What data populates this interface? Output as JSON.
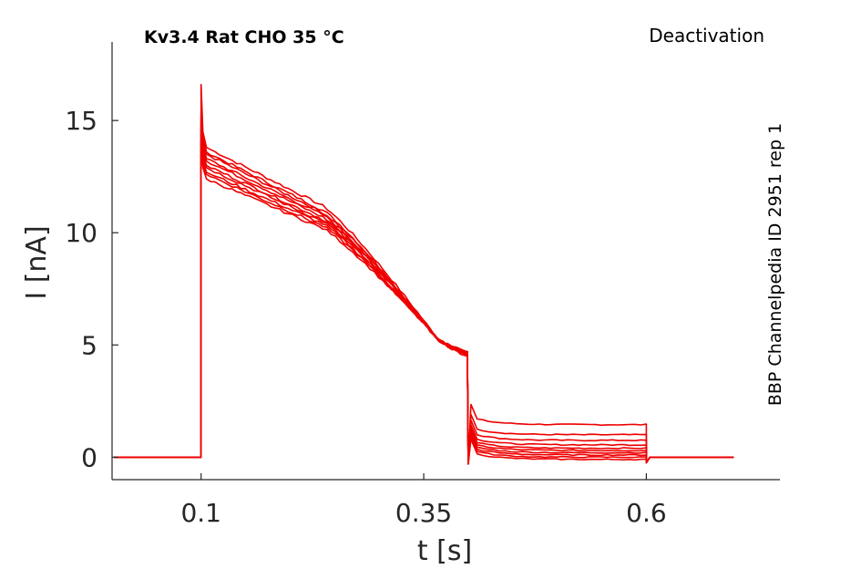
{
  "title": "Kv3.4  Rat  CHO  35 °C",
  "protocol": "Deactivation",
  "side_label": "BBP Channelpedia ID 2951 rep 1",
  "colors": {
    "trace": "#ee0000",
    "axis": "#262626"
  },
  "chart_data": {
    "type": "line",
    "xlabel": "t [s]",
    "ylabel": "I [nA]",
    "xlim": [
      0.0,
      0.75
    ],
    "ylim": [
      -1.0,
      18.5
    ],
    "xticks": [
      0.1,
      0.35,
      0.6
    ],
    "xtick_labels": [
      "0.1",
      "0.35",
      "0.6"
    ],
    "yticks": [
      0,
      5,
      10,
      15
    ],
    "ytick_labels": [
      "0",
      "5",
      "10",
      "15"
    ],
    "grid": false,
    "legend": "none",
    "sweep_times": {
      "start": 0.002,
      "step_on": 0.1,
      "step_off": 0.4,
      "tail_end": 0.6,
      "end": 0.698
    },
    "series": [
      {
        "peak": 14.5,
        "early": 13.8,
        "mid": 11.2,
        "late": 4.7,
        "tail": 1.45
      },
      {
        "peak": 14.3,
        "early": 13.6,
        "mid": 11.0,
        "late": 4.6,
        "tail": 1.0
      },
      {
        "peak": 14.1,
        "early": 13.5,
        "mid": 10.9,
        "late": 4.7,
        "tail": 0.75
      },
      {
        "peak": 14.0,
        "early": 13.3,
        "mid": 10.8,
        "late": 4.6,
        "tail": 0.55
      },
      {
        "peak": 13.8,
        "early": 13.2,
        "mid": 10.7,
        "late": 4.7,
        "tail": 0.4
      },
      {
        "peak": 13.6,
        "early": 13.0,
        "mid": 10.6,
        "late": 4.6,
        "tail": 0.3
      },
      {
        "peak": 13.4,
        "early": 12.9,
        "mid": 10.5,
        "late": 4.7,
        "tail": 0.2
      },
      {
        "peak": 13.2,
        "early": 12.7,
        "mid": 10.4,
        "late": 4.6,
        "tail": 0.1
      },
      {
        "peak": 13.0,
        "early": 12.6,
        "mid": 10.3,
        "late": 4.6,
        "tail": 0.0
      },
      {
        "peak": 12.9,
        "early": 12.4,
        "mid": 10.2,
        "late": 4.5,
        "tail": -0.1
      }
    ]
  }
}
